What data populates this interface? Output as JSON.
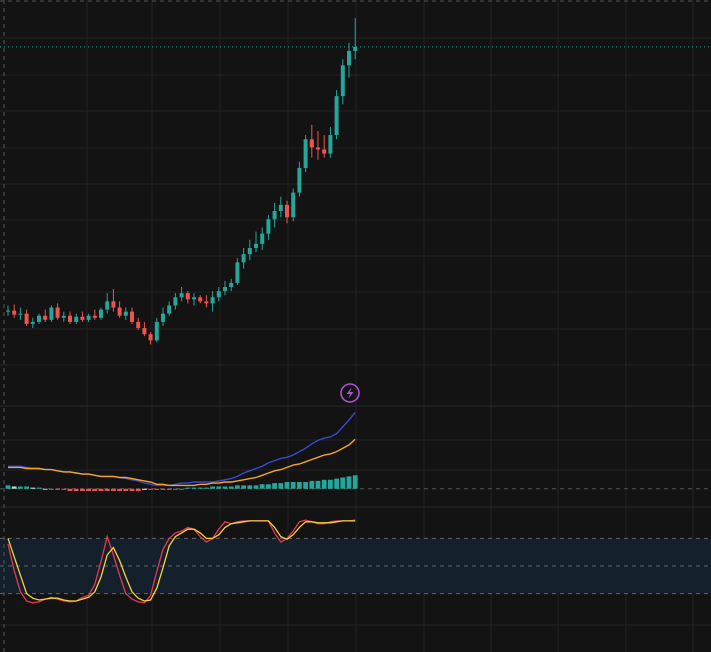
{
  "colors": {
    "background": "#131313",
    "grid": "#232323",
    "up": "#26a69a",
    "down": "#ef5350",
    "macd_line": "#3949d6",
    "signal_line": "#f5a623",
    "hist_up_strong": "#26a69a",
    "hist_up_weak": "#b2dfdb",
    "hist_down_strong": "#ef5350",
    "hist_down_weak": "#ffcdd2",
    "stoch_k": "#e53950",
    "stoch_d": "#f5d33a",
    "band_fill": "#14212d",
    "price_line": "#26a69a",
    "event_marker": "#b04fd6"
  },
  "icons": {
    "event_marker": "lightning-icon"
  },
  "chart_data": [
    {
      "type": "candlestick",
      "title": "",
      "ylim": [
        0,
        380
      ],
      "last_price": 348,
      "candles": [
        [
          90,
          96,
          86,
          91
        ],
        [
          91,
          97,
          84,
          87
        ],
        [
          87,
          94,
          82,
          88
        ],
        [
          88,
          92,
          76,
          78
        ],
        [
          78,
          84,
          74,
          80
        ],
        [
          80,
          88,
          78,
          86
        ],
        [
          86,
          92,
          80,
          82
        ],
        [
          82,
          96,
          80,
          94
        ],
        [
          94,
          98,
          82,
          84
        ],
        [
          84,
          90,
          80,
          86
        ],
        [
          86,
          90,
          78,
          80
        ],
        [
          80,
          88,
          78,
          85
        ],
        [
          85,
          90,
          80,
          82
        ],
        [
          82,
          88,
          80,
          86
        ],
        [
          86,
          92,
          82,
          84
        ],
        [
          84,
          94,
          82,
          92
        ],
        [
          92,
          108,
          88,
          100
        ],
        [
          100,
          112,
          90,
          94
        ],
        [
          94,
          100,
          84,
          86
        ],
        [
          86,
          94,
          82,
          90
        ],
        [
          90,
          94,
          78,
          80
        ],
        [
          80,
          84,
          72,
          74
        ],
        [
          74,
          80,
          66,
          68
        ],
        [
          68,
          70,
          58,
          62
        ],
        [
          62,
          84,
          60,
          80
        ],
        [
          80,
          94,
          76,
          88
        ],
        [
          88,
          100,
          86,
          96
        ],
        [
          96,
          108,
          92,
          104
        ],
        [
          104,
          114,
          100,
          108
        ],
        [
          108,
          110,
          98,
          102
        ],
        [
          102,
          108,
          96,
          104
        ],
        [
          104,
          106,
          98,
          100
        ],
        [
          100,
          106,
          94,
          98
        ],
        [
          98,
          110,
          90,
          104
        ],
        [
          104,
          114,
          100,
          110
        ],
        [
          110,
          120,
          106,
          114
        ],
        [
          114,
          122,
          110,
          118
        ],
        [
          118,
          142,
          116,
          138
        ],
        [
          138,
          152,
          132,
          146
        ],
        [
          146,
          160,
          140,
          152
        ],
        [
          152,
          168,
          148,
          156
        ],
        [
          156,
          172,
          150,
          166
        ],
        [
          166,
          184,
          160,
          180
        ],
        [
          180,
          196,
          172,
          188
        ],
        [
          188,
          202,
          182,
          194
        ],
        [
          194,
          198,
          176,
          182
        ],
        [
          182,
          210,
          178,
          206
        ],
        [
          206,
          236,
          202,
          230
        ],
        [
          230,
          262,
          226,
          258
        ],
        [
          258,
          272,
          240,
          250
        ],
        [
          250,
          266,
          238,
          248
        ],
        [
          248,
          262,
          240,
          244
        ],
        [
          244,
          270,
          240,
          262
        ],
        [
          262,
          306,
          258,
          300
        ],
        [
          300,
          336,
          292,
          330
        ],
        [
          330,
          352,
          318,
          344
        ],
        [
          344,
          376,
          336,
          348
        ]
      ]
    },
    {
      "type": "macd",
      "title": "",
      "ylim": [
        -10,
        70
      ],
      "macd": [
        20,
        20,
        20,
        19,
        18,
        18,
        17,
        17,
        16,
        15,
        15,
        14,
        13,
        13,
        12,
        11,
        11,
        11,
        10,
        9,
        8,
        7,
        5,
        4,
        3,
        3,
        3,
        4,
        5,
        5,
        6,
        6,
        6,
        6,
        7,
        8,
        9,
        11,
        14,
        16,
        18,
        20,
        23,
        25,
        27,
        28,
        30,
        33,
        36,
        40,
        43,
        45,
        46,
        49,
        55,
        61,
        68
      ],
      "signal": [
        19,
        19,
        19,
        18,
        18,
        18,
        17,
        17,
        16,
        15,
        15,
        14,
        13,
        13,
        12,
        11,
        11,
        11,
        10,
        10,
        9,
        8,
        7,
        6,
        4,
        4,
        3,
        3,
        3,
        3,
        3,
        4,
        4,
        5,
        5,
        6,
        6,
        7,
        8,
        9,
        10,
        12,
        14,
        16,
        17,
        19,
        21,
        22,
        24,
        26,
        28,
        30,
        31,
        33,
        36,
        39,
        44
      ],
      "histogram": [
        3,
        2,
        2,
        2,
        1,
        1,
        0,
        0,
        -1,
        -1,
        -2,
        -2,
        -2,
        -2,
        -2,
        -2,
        -2,
        -2,
        -2,
        -2,
        -2,
        -2,
        -1,
        -1,
        -1,
        -1,
        -1,
        0,
        0,
        1,
        1,
        1,
        1,
        2,
        2,
        2,
        2,
        3,
        3,
        3,
        3,
        4,
        4,
        5,
        5,
        6,
        6,
        6,
        6,
        7,
        7,
        8,
        8,
        9,
        10,
        11,
        12
      ]
    },
    {
      "type": "stochastic",
      "title": "",
      "ylim": [
        0,
        100
      ],
      "upper_band": 80,
      "mid_band": 50,
      "lower_band": 20,
      "k": [
        74,
        45,
        22,
        12,
        10,
        11,
        14,
        16,
        14,
        12,
        11,
        12,
        16,
        18,
        30,
        55,
        82,
        62,
        40,
        20,
        14,
        11,
        10,
        18,
        44,
        68,
        80,
        86,
        88,
        92,
        90,
        82,
        76,
        80,
        90,
        98,
        96,
        98,
        99,
        99,
        99,
        99,
        99,
        86,
        76,
        80,
        88,
        98,
        100,
        98,
        96,
        96,
        98,
        99,
        99,
        99,
        100
      ],
      "d": [
        80,
        60,
        40,
        20,
        15,
        13,
        14,
        15,
        15,
        13,
        12,
        12,
        14,
        16,
        22,
        38,
        62,
        70,
        56,
        38,
        22,
        15,
        12,
        13,
        26,
        48,
        72,
        82,
        86,
        90,
        90,
        86,
        80,
        80,
        84,
        92,
        96,
        97,
        98,
        99,
        99,
        99,
        99,
        92,
        82,
        79,
        84,
        92,
        98,
        98,
        97,
        97,
        97,
        98,
        99,
        99,
        99
      ]
    }
  ]
}
